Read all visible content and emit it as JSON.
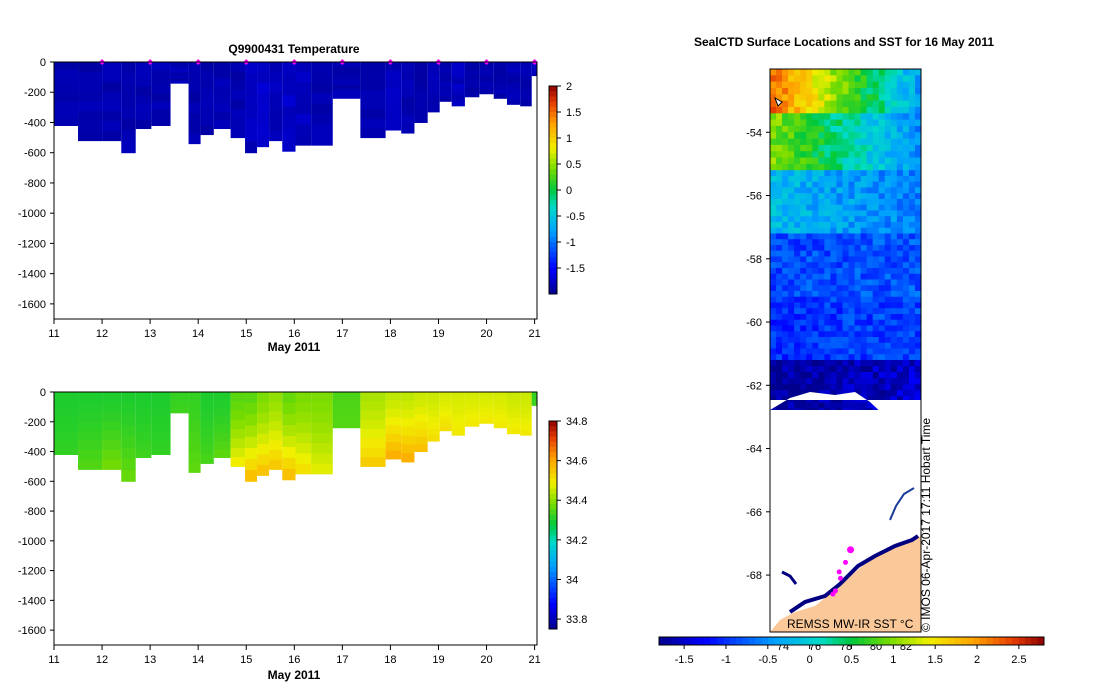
{
  "chart_data": [
    {
      "type": "heatmap",
      "title": "Q9900431  Temperature",
      "xlabel": "May 2011",
      "ylabel": "",
      "x_ticks": [
        "11",
        "12",
        "13",
        "14",
        "15",
        "16",
        "17",
        "18",
        "19",
        "20",
        "21"
      ],
      "y_ticks": [
        "0",
        "-200",
        "-400",
        "-600",
        "-800",
        "-1000",
        "-1200",
        "-1400",
        "-1600"
      ],
      "xlim": [
        11,
        21.05
      ],
      "ylim": [
        -1700,
        0
      ],
      "colorbar": {
        "min": -2,
        "max": 2,
        "ticks": [
          "2",
          "1.5",
          "1",
          "0.5",
          "0",
          "-0.5",
          "-1",
          "-1.5"
        ]
      },
      "profiles": [
        {
          "day": 11.25,
          "bottom": -420,
          "value": -1.85
        },
        {
          "day": 11.75,
          "bottom": -520,
          "value": -1.85
        },
        {
          "day": 12.25,
          "bottom": -520,
          "value": -1.85
        },
        {
          "day": 12.55,
          "bottom": -600,
          "value": -1.85
        },
        {
          "day": 12.85,
          "bottom": -440,
          "value": -1.85
        },
        {
          "day": 13.2,
          "bottom": -420,
          "value": -1.85
        },
        {
          "day": 13.65,
          "bottom": -140,
          "value": -1.85
        },
        {
          "day": 13.95,
          "bottom": -540,
          "value": -1.85
        },
        {
          "day": 14.15,
          "bottom": -480,
          "value": -1.85
        },
        {
          "day": 14.5,
          "bottom": -440,
          "value": -1.85
        },
        {
          "day": 14.85,
          "bottom": -500,
          "value": -1.85
        },
        {
          "day": 15.1,
          "bottom": -600,
          "value": -1.8
        },
        {
          "day": 15.35,
          "bottom": -560,
          "value": -1.75
        },
        {
          "day": 15.6,
          "bottom": -520,
          "value": -1.8
        },
        {
          "day": 15.9,
          "bottom": -590,
          "value": -1.75
        },
        {
          "day": 16.15,
          "bottom": -550,
          "value": -1.8
        },
        {
          "day": 16.55,
          "bottom": -550,
          "value": -1.85
        },
        {
          "day": 17.05,
          "bottom": -240,
          "value": -1.85
        },
        {
          "day": 17.7,
          "bottom": -500,
          "value": -1.85
        },
        {
          "day": 18.1,
          "bottom": -450,
          "value": -1.8
        },
        {
          "day": 18.35,
          "bottom": -470,
          "value": -1.85
        },
        {
          "day": 18.65,
          "bottom": -400,
          "value": -1.85
        },
        {
          "day": 18.9,
          "bottom": -330,
          "value": -1.85
        },
        {
          "day": 19.15,
          "bottom": -260,
          "value": -1.85
        },
        {
          "day": 19.4,
          "bottom": -290,
          "value": -1.8
        },
        {
          "day": 19.7,
          "bottom": -230,
          "value": -1.85
        },
        {
          "day": 20.0,
          "bottom": -210,
          "value": -1.85
        },
        {
          "day": 20.3,
          "bottom": -240,
          "value": -1.85
        },
        {
          "day": 20.55,
          "bottom": -280,
          "value": -1.85
        },
        {
          "day": 20.85,
          "bottom": -290,
          "value": -1.85
        },
        {
          "day": 21.03,
          "bottom": -90,
          "value": -1.8
        }
      ],
      "surface_markers": [
        12,
        13,
        14,
        15,
        16,
        17,
        18,
        19,
        20,
        21
      ]
    },
    {
      "type": "heatmap",
      "title": "",
      "xlabel": "May 2011",
      "ylabel": "",
      "x_ticks": [
        "11",
        "12",
        "13",
        "14",
        "15",
        "16",
        "17",
        "18",
        "19",
        "20",
        "21"
      ],
      "y_ticks": [
        "0",
        "-200",
        "-400",
        "-600",
        "-800",
        "-1000",
        "-1200",
        "-1400",
        "-1600"
      ],
      "xlim": [
        11,
        21.05
      ],
      "ylim": [
        -1700,
        0
      ],
      "colorbar": {
        "min": 33.75,
        "max": 34.8,
        "ticks": [
          "34.8",
          "34.6",
          "34.4",
          "34.2",
          "34",
          "33.8"
        ]
      },
      "profiles": [
        {
          "day": 11.25,
          "surface": 34.3,
          "deep": 34.32,
          "bottom": -420
        },
        {
          "day": 11.75,
          "surface": 34.3,
          "deep": 34.35,
          "bottom": -520
        },
        {
          "day": 12.25,
          "surface": 34.3,
          "deep": 34.38,
          "bottom": -520
        },
        {
          "day": 12.55,
          "surface": 34.3,
          "deep": 34.37,
          "bottom": -600
        },
        {
          "day": 12.85,
          "surface": 34.3,
          "deep": 34.33,
          "bottom": -440
        },
        {
          "day": 13.2,
          "surface": 34.3,
          "deep": 34.32,
          "bottom": -420
        },
        {
          "day": 13.65,
          "surface": 34.32,
          "deep": 34.33,
          "bottom": -140
        },
        {
          "day": 13.95,
          "surface": 34.32,
          "deep": 34.36,
          "bottom": -540
        },
        {
          "day": 14.15,
          "surface": 34.3,
          "deep": 34.34,
          "bottom": -480
        },
        {
          "day": 14.5,
          "surface": 34.3,
          "deep": 34.36,
          "bottom": -440
        },
        {
          "day": 14.85,
          "surface": 34.35,
          "deep": 34.5,
          "bottom": -500
        },
        {
          "day": 15.1,
          "surface": 34.35,
          "deep": 34.58,
          "bottom": -600
        },
        {
          "day": 15.35,
          "surface": 34.38,
          "deep": 34.57,
          "bottom": -560
        },
        {
          "day": 15.6,
          "surface": 34.4,
          "deep": 34.56,
          "bottom": -520
        },
        {
          "day": 15.9,
          "surface": 34.36,
          "deep": 34.58,
          "bottom": -590
        },
        {
          "day": 16.15,
          "surface": 34.38,
          "deep": 34.52,
          "bottom": -550
        },
        {
          "day": 16.55,
          "surface": 34.38,
          "deep": 34.48,
          "bottom": -550
        },
        {
          "day": 17.05,
          "surface": 34.34,
          "deep": 34.35,
          "bottom": -240
        },
        {
          "day": 17.7,
          "surface": 34.42,
          "deep": 34.55,
          "bottom": -500
        },
        {
          "day": 18.1,
          "surface": 34.44,
          "deep": 34.6,
          "bottom": -450
        },
        {
          "day": 18.35,
          "surface": 34.44,
          "deep": 34.6,
          "bottom": -470
        },
        {
          "day": 18.65,
          "surface": 34.45,
          "deep": 34.57,
          "bottom": -400
        },
        {
          "day": 18.9,
          "surface": 34.45,
          "deep": 34.52,
          "bottom": -330
        },
        {
          "day": 19.15,
          "surface": 34.46,
          "deep": 34.52,
          "bottom": -260
        },
        {
          "day": 19.4,
          "surface": 34.46,
          "deep": 34.5,
          "bottom": -290
        },
        {
          "day": 19.7,
          "surface": 34.46,
          "deep": 34.5,
          "bottom": -230
        },
        {
          "day": 20.0,
          "surface": 34.46,
          "deep": 34.5,
          "bottom": -210
        },
        {
          "day": 20.3,
          "surface": 34.46,
          "deep": 34.5,
          "bottom": -240
        },
        {
          "day": 20.55,
          "surface": 34.45,
          "deep": 34.5,
          "bottom": -280
        },
        {
          "day": 20.85,
          "surface": 34.45,
          "deep": 34.5,
          "bottom": -290
        },
        {
          "day": 21.03,
          "surface": 34.32,
          "deep": 34.33,
          "bottom": -90
        }
      ]
    },
    {
      "type": "heatmap",
      "title": "SealCTD Surface Locations and SST for 16 May 2011",
      "xlabel": "",
      "ylabel": "",
      "y_ticks": [
        "-54",
        "-56",
        "-58",
        "-60",
        "-62",
        "-64",
        "-66",
        "-68"
      ],
      "y_tick_values": [
        -54,
        -56,
        -58,
        -60,
        -62,
        -64,
        -66,
        -68
      ],
      "ylim": [
        -69.8,
        -52.0
      ],
      "lon_ticks": [
        "74",
        "76",
        "78",
        "80",
        "82"
      ],
      "colorbar": {
        "min": -1.8,
        "max": 2.8,
        "ticks": [
          "-1.5",
          "-1",
          "-0.5",
          "0",
          "0.5",
          "1",
          "1.5",
          "2",
          "2.5"
        ],
        "tick_values": [
          -1.5,
          -1,
          -0.5,
          0,
          0.5,
          1,
          1.5,
          2,
          2.5
        ]
      },
      "sst_bands": [
        {
          "lat_from": -52.0,
          "lat_to": -53.4,
          "west": 2.2,
          "east": -0.4
        },
        {
          "lat_from": -53.4,
          "lat_to": -55.2,
          "west": 1.0,
          "east": -0.5
        },
        {
          "lat_from": -55.2,
          "lat_to": -57.2,
          "west": -0.2,
          "east": -0.6
        },
        {
          "lat_from": -57.2,
          "lat_to": -59.2,
          "west": -0.9,
          "east": -0.8
        },
        {
          "lat_from": -59.2,
          "lat_to": -61.2,
          "west": -1.0,
          "east": -0.9
        },
        {
          "lat_from": -61.2,
          "lat_to": -63.3,
          "west": -1.75,
          "east": -1.5
        }
      ],
      "seal_positions": [
        {
          "lon": 77.5,
          "lat": -67.9
        },
        {
          "lon": 78.0,
          "lat": -67.6
        },
        {
          "lon": 78.4,
          "lat": -67.2
        },
        {
          "lon": 77.6,
          "lat": -68.1
        },
        {
          "lon": 77.2,
          "lat": -68.5
        },
        {
          "lon": 77.0,
          "lat": -68.6
        }
      ],
      "credit": "REMSS MW-IR SST °C",
      "stamp": "© IMOS 06-Apr-2017 17:11 Hobart Time"
    }
  ],
  "colors": {
    "land": "#fbc999",
    "marker": "#ff00ff",
    "ice_edge": "#000080"
  }
}
